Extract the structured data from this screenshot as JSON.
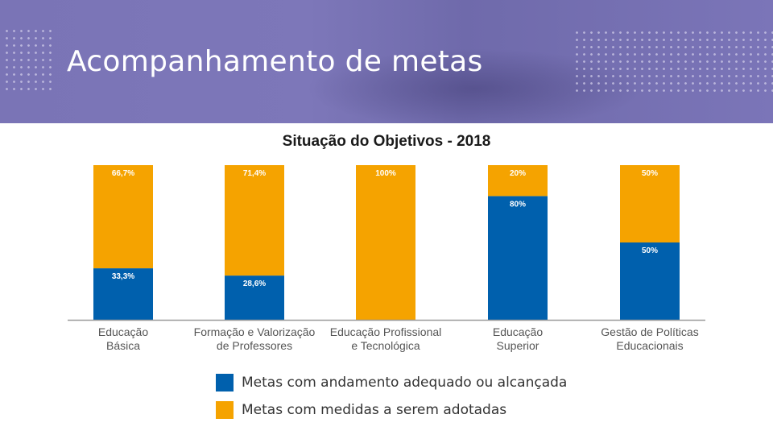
{
  "header": {
    "title": "Acompanhamento de metas"
  },
  "colors": {
    "banner": "#7a74b6",
    "blue": "#0060ad",
    "orange": "#f5a300"
  },
  "chart_data": {
    "type": "bar",
    "stacked": true,
    "title": "Situação do Objetivos - 2018",
    "categories": [
      [
        "Educação",
        "Básica"
      ],
      [
        "Formação e Valorização",
        "de Professores"
      ],
      [
        "Educação Profissional",
        "e Tecnológica"
      ],
      [
        "Educação",
        "Superior"
      ],
      [
        "Gestão de Políticas",
        "Educacionais"
      ]
    ],
    "series": [
      {
        "name": "Metas com andamento adequado ou alcançada",
        "color": "#0060ad",
        "values": [
          33.3,
          28.6,
          0,
          80,
          50
        ],
        "labels": [
          "33,3%",
          "28,6%",
          "",
          "80%",
          "50%"
        ]
      },
      {
        "name": "Metas com medidas a serem adotadas",
        "color": "#f5a300",
        "values": [
          66.7,
          71.4,
          100,
          20,
          50
        ],
        "labels": [
          "66,7%",
          "71,4%",
          "100%",
          "20%",
          "50%"
        ]
      }
    ],
    "ylim": [
      0,
      100
    ],
    "grid": false,
    "legend": "bottom"
  }
}
